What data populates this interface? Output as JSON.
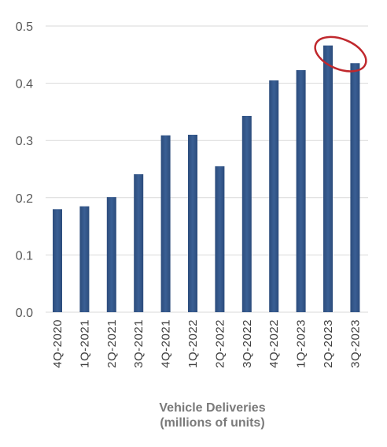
{
  "chart_data": {
    "type": "bar",
    "categories": [
      "4Q-2020",
      "1Q-2021",
      "2Q-2021",
      "3Q-2021",
      "4Q-2021",
      "1Q-2022",
      "2Q-2022",
      "3Q-2022",
      "4Q-2022",
      "1Q-2023",
      "2Q-2023",
      "3Q-2023"
    ],
    "values": [
      0.18,
      0.185,
      0.201,
      0.241,
      0.309,
      0.31,
      0.255,
      0.343,
      0.405,
      0.423,
      0.466,
      0.435
    ],
    "xlabel_line1": "Vehicle Deliveries",
    "xlabel_line2": "(millions of units)",
    "ylim": [
      0,
      0.5
    ],
    "yticks": [
      "0.0",
      "0.1",
      "0.2",
      "0.3",
      "0.4",
      "0.5"
    ],
    "grid": true,
    "highlight_category": "2Q-2023",
    "bar_color": "#3a5f94",
    "grid_color": "#d9d9d9",
    "highlight_color": "#c0282d"
  }
}
